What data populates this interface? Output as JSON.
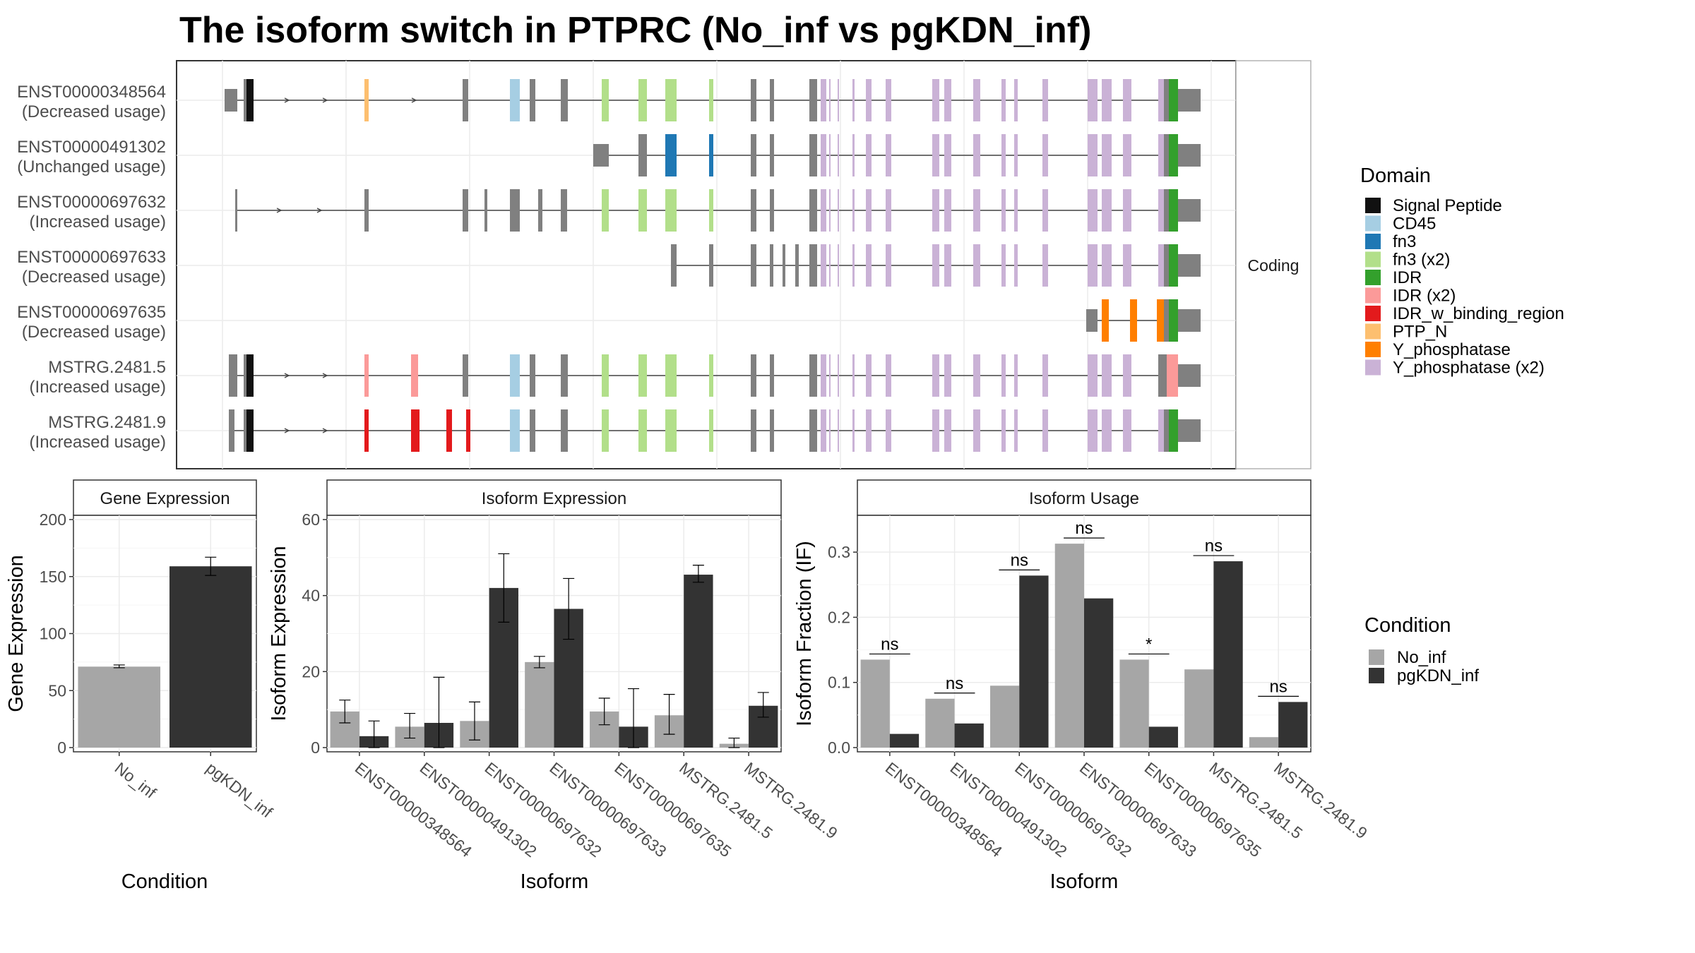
{
  "title": "The isoform switch in PTPRC (No_inf vs pgKDN_inf)",
  "colors": {
    "no_inf": "#a6a6a6",
    "pgkdn_inf": "#333333",
    "exon_gray": "#808080",
    "panel_border": "#333333",
    "strip_fill": "#ffffff",
    "grid": "#ebebeb"
  },
  "isoform_panel": {
    "strip_label": "Coding",
    "isoforms": [
      {
        "id": "ENST00000348564",
        "usage": "(Decreased usage)"
      },
      {
        "id": "ENST00000491302",
        "usage": "(Unchanged usage)"
      },
      {
        "id": "ENST00000697632",
        "usage": "(Increased usage)"
      },
      {
        "id": "ENST00000697633",
        "usage": "(Decreased usage)"
      },
      {
        "id": "ENST00000697635",
        "usage": "(Decreased usage)"
      },
      {
        "id": "MSTRG.2481.5",
        "usage": "(Increased usage)"
      },
      {
        "id": "MSTRG.2481.9",
        "usage": "(Increased usage)"
      }
    ]
  },
  "domain_legend": {
    "title": "Domain",
    "items": [
      {
        "label": "Signal Peptide",
        "color": "#111111"
      },
      {
        "label": "CD45",
        "color": "#a6cee3"
      },
      {
        "label": "fn3",
        "color": "#1f78b4"
      },
      {
        "label": "fn3 (x2)",
        "color": "#b2df8a"
      },
      {
        "label": "IDR",
        "color": "#33a02c"
      },
      {
        "label": "IDR (x2)",
        "color": "#fb9a99"
      },
      {
        "label": "IDR_w_binding_region",
        "color": "#e31a1c"
      },
      {
        "label": "PTP_N",
        "color": "#fdbf6f"
      },
      {
        "label": "Y_phosphatase",
        "color": "#ff7f00"
      },
      {
        "label": "Y_phosphatase (x2)",
        "color": "#cab2d6"
      }
    ]
  },
  "condition_legend": {
    "title": "Condition",
    "items": [
      {
        "label": "No_inf",
        "color": "#a6a6a6"
      },
      {
        "label": "pgKDN_inf",
        "color": "#333333"
      }
    ]
  },
  "chart_data": [
    {
      "type": "bar",
      "strip": "Gene Expression",
      "xlabel": "Condition",
      "ylabel": "Gene Expression",
      "ylim": [
        0,
        200
      ],
      "yticks": [
        0,
        50,
        100,
        150,
        200
      ],
      "categories": [
        "No_inf",
        "pgKDN_inf"
      ],
      "values": [
        71,
        159
      ],
      "errors": [
        [
          70,
          72.5
        ],
        [
          151,
          167
        ]
      ]
    },
    {
      "type": "bar",
      "strip": "Isoform Expression",
      "xlabel": "Isoform",
      "ylabel": "Isoform Expression",
      "ylim": [
        0,
        60
      ],
      "yticks": [
        0,
        20,
        40,
        60
      ],
      "categories": [
        "ENST00000348564",
        "ENST00000491302",
        "ENST00000697632",
        "ENST00000697633",
        "ENST00000697635",
        "MSTRG.2481.5",
        "MSTRG.2481.9"
      ],
      "series": [
        {
          "name": "No_inf",
          "values": [
            9.5,
            5.5,
            7,
            22.5,
            9.5,
            8.5,
            1
          ],
          "errors": [
            [
              6.5,
              12.5
            ],
            [
              2.5,
              9
            ],
            [
              2,
              12
            ],
            [
              21,
              24
            ],
            [
              6,
              13
            ],
            [
              3.5,
              14
            ],
            [
              0,
              2.5
            ]
          ]
        },
        {
          "name": "pgKDN_inf",
          "values": [
            3,
            6.5,
            42,
            36.5,
            5.5,
            45.5,
            11
          ],
          "errors": [
            [
              0,
              7
            ],
            [
              0,
              18.5
            ],
            [
              33,
              51
            ],
            [
              28.5,
              44.5
            ],
            [
              0,
              15.5
            ],
            [
              43.5,
              48
            ],
            [
              8,
              14.5
            ]
          ]
        }
      ]
    },
    {
      "type": "bar",
      "strip": "Isoform Usage",
      "xlabel": "Isoform",
      "ylabel": "Isoform Fraction (IF)",
      "ylim": [
        0,
        0.35
      ],
      "yticks": [
        0.0,
        0.1,
        0.2,
        0.3
      ],
      "ytick_labels": [
        "0.0",
        "0.1",
        "0.2",
        "0.3"
      ],
      "categories": [
        "ENST00000348564",
        "ENST00000491302",
        "ENST00000697632",
        "ENST00000697633",
        "ENST00000697635",
        "MSTRG.2481.5",
        "MSTRG.2481.9"
      ],
      "series": [
        {
          "name": "No_inf",
          "values": [
            0.135,
            0.075,
            0.095,
            0.313,
            0.135,
            0.12,
            0.016
          ]
        },
        {
          "name": "pgKDN_inf",
          "values": [
            0.021,
            0.037,
            0.264,
            0.229,
            0.032,
            0.286,
            0.07
          ]
        }
      ],
      "significance": [
        "ns",
        "ns",
        "ns",
        "ns",
        "*",
        "ns",
        "ns"
      ]
    }
  ]
}
